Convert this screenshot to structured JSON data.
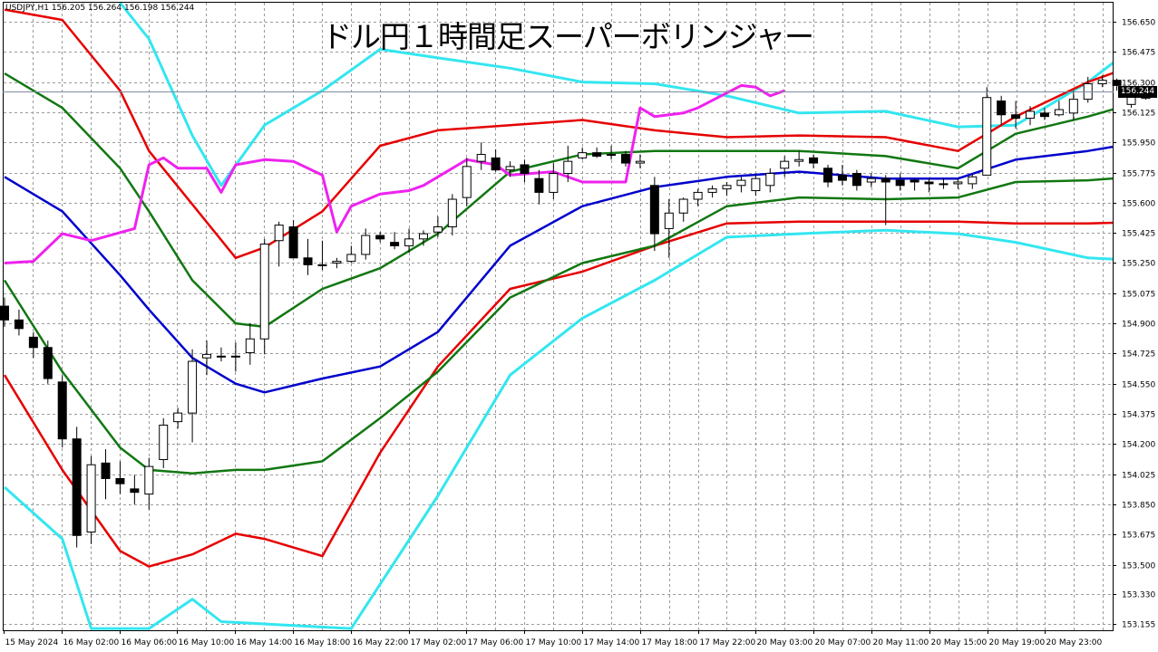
{
  "window": {
    "symbol_info": "USDJPY,H1  156.205 156.264 156.198 156.244",
    "title": "ドル円１時間足スーパーボリンジャー",
    "last_price": "156.244"
  },
  "colors": {
    "band_3sigma": "#33e6f0",
    "band_2sigma": "#e60000",
    "band_1sigma": "#117711",
    "middle_line": "#0000cc",
    "lagging_span": "#ee22ee"
  },
  "chart_data": {
    "type": "candlestick",
    "symbol": "USDJPY",
    "timeframe": "H1",
    "ylim": [
      153.12,
      156.76
    ],
    "price_ticks": [
      "156.650",
      "156.475",
      "156.300",
      "156.125",
      "155.950",
      "155.775",
      "155.600",
      "155.425",
      "155.250",
      "155.075",
      "154.900",
      "154.725",
      "154.550",
      "154.375",
      "154.200",
      "154.025",
      "153.850",
      "153.675",
      "153.500",
      "153.330",
      "153.155"
    ],
    "time_ticks": [
      "15 May 2024",
      "16 May 02:00",
      "16 May 06:00",
      "16 May 10:00",
      "16 May 14:00",
      "16 May 18:00",
      "16 May 22:00",
      "17 May 02:00",
      "17 May 06:00",
      "17 May 10:00",
      "17 May 14:00",
      "17 May 18:00",
      "17 May 22:00",
      "20 May 03:00",
      "20 May 07:00",
      "20 May 11:00",
      "20 May 15:00",
      "20 May 19:00",
      "20 May 23:00"
    ],
    "candles": [
      [
        155.0,
        155.05,
        154.88,
        154.92
      ],
      [
        154.92,
        154.98,
        154.83,
        154.87
      ],
      [
        154.82,
        154.85,
        154.7,
        154.76
      ],
      [
        154.76,
        154.8,
        154.55,
        154.58
      ],
      [
        154.56,
        154.6,
        154.18,
        154.23
      ],
      [
        154.23,
        154.3,
        153.6,
        153.67
      ],
      [
        153.69,
        154.13,
        153.62,
        154.08
      ],
      [
        154.09,
        154.17,
        153.88,
        154.0
      ],
      [
        154.0,
        154.1,
        153.91,
        153.97
      ],
      [
        153.94,
        154.02,
        153.85,
        153.92
      ],
      [
        153.91,
        154.12,
        153.82,
        154.07
      ],
      [
        154.11,
        154.35,
        154.06,
        154.31
      ],
      [
        154.33,
        154.41,
        154.29,
        154.38
      ],
      [
        154.38,
        154.75,
        154.21,
        154.68
      ],
      [
        154.7,
        154.8,
        154.6,
        154.72
      ],
      [
        154.71,
        154.76,
        154.68,
        154.71
      ],
      [
        154.71,
        154.79,
        154.62,
        154.71
      ],
      [
        154.73,
        154.9,
        154.66,
        154.81
      ],
      [
        154.81,
        155.39,
        154.72,
        155.36
      ],
      [
        155.38,
        155.49,
        155.23,
        155.47
      ],
      [
        155.46,
        155.5,
        155.31,
        155.28
      ],
      [
        155.28,
        155.39,
        155.18,
        155.24
      ],
      [
        155.24,
        155.38,
        155.21,
        155.24
      ],
      [
        155.25,
        155.28,
        155.22,
        155.26
      ],
      [
        155.26,
        155.35,
        155.25,
        155.3
      ],
      [
        155.3,
        155.45,
        155.27,
        155.41
      ],
      [
        155.41,
        155.43,
        155.37,
        155.39
      ],
      [
        155.37,
        155.43,
        155.33,
        155.35
      ],
      [
        155.35,
        155.45,
        155.31,
        155.39
      ],
      [
        155.39,
        155.44,
        155.35,
        155.42
      ],
      [
        155.43,
        155.52,
        155.4,
        155.46
      ],
      [
        155.46,
        155.65,
        155.41,
        155.62
      ],
      [
        155.63,
        155.86,
        155.58,
        155.81
      ],
      [
        155.84,
        155.95,
        155.79,
        155.88
      ],
      [
        155.86,
        155.91,
        155.78,
        155.79
      ],
      [
        155.79,
        155.84,
        155.75,
        155.81
      ],
      [
        155.82,
        155.85,
        155.72,
        155.77
      ],
      [
        155.74,
        155.79,
        155.59,
        155.66
      ],
      [
        155.66,
        155.83,
        155.62,
        155.77
      ],
      [
        155.77,
        155.93,
        155.72,
        155.84
      ],
      [
        155.86,
        155.92,
        155.85,
        155.89
      ],
      [
        155.89,
        155.92,
        155.86,
        155.87
      ],
      [
        155.88,
        155.93,
        155.85,
        155.88
      ],
      [
        155.88,
        155.9,
        155.81,
        155.83
      ],
      [
        155.83,
        155.88,
        155.8,
        155.84
      ],
      [
        155.7,
        155.75,
        155.32,
        155.42
      ],
      [
        155.45,
        155.62,
        155.28,
        155.54
      ],
      [
        155.54,
        155.63,
        155.49,
        155.62
      ],
      [
        155.62,
        155.68,
        155.58,
        155.66
      ],
      [
        155.66,
        155.7,
        155.63,
        155.68
      ],
      [
        155.68,
        155.72,
        155.64,
        155.7
      ],
      [
        155.7,
        155.75,
        155.66,
        155.73
      ],
      [
        155.67,
        155.76,
        155.64,
        155.74
      ],
      [
        155.7,
        155.8,
        155.66,
        155.77
      ],
      [
        155.8,
        155.87,
        155.75,
        155.84
      ],
      [
        155.84,
        155.9,
        155.81,
        155.85
      ],
      [
        155.86,
        155.88,
        155.8,
        155.83
      ],
      [
        155.8,
        155.82,
        155.69,
        155.72
      ],
      [
        155.76,
        155.82,
        155.7,
        155.73
      ],
      [
        155.77,
        155.79,
        155.67,
        155.7
      ],
      [
        155.72,
        155.77,
        155.69,
        155.74
      ],
      [
        155.74,
        155.76,
        155.47,
        155.72
      ],
      [
        155.73,
        155.77,
        155.67,
        155.7
      ],
      [
        155.73,
        155.74,
        155.67,
        155.72
      ],
      [
        155.72,
        155.74,
        155.66,
        155.71
      ],
      [
        155.71,
        155.74,
        155.68,
        155.71
      ],
      [
        155.71,
        155.74,
        155.68,
        155.72
      ],
      [
        155.71,
        155.77,
        155.68,
        155.75
      ],
      [
        155.76,
        156.27,
        155.79,
        156.21
      ],
      [
        156.19,
        156.22,
        156.05,
        156.11
      ],
      [
        156.11,
        156.19,
        156.03,
        156.09
      ],
      [
        156.09,
        156.16,
        156.05,
        156.13
      ],
      [
        156.12,
        156.15,
        156.08,
        156.1
      ],
      [
        156.11,
        156.19,
        156.1,
        156.14
      ],
      [
        156.12,
        156.25,
        156.08,
        156.2
      ],
      [
        156.2,
        156.33,
        156.18,
        156.29
      ],
      [
        156.29,
        156.34,
        156.27,
        156.31
      ],
      [
        156.31,
        156.32,
        156.25,
        156.28
      ],
      [
        156.17,
        156.27,
        156.15,
        156.24
      ],
      [
        156.205,
        156.264,
        156.198,
        156.244
      ]
    ],
    "bands": {
      "middle": [
        [
          0,
          155.75
        ],
        [
          4,
          155.55
        ],
        [
          8,
          155.18
        ],
        [
          10,
          154.98
        ],
        [
          13,
          154.7
        ],
        [
          16,
          154.55
        ],
        [
          18,
          154.5
        ],
        [
          22,
          154.58
        ],
        [
          26,
          154.65
        ],
        [
          30,
          154.85
        ],
        [
          35,
          155.35
        ],
        [
          40,
          155.58
        ],
        [
          45,
          155.69
        ],
        [
          50,
          155.75
        ],
        [
          55,
          155.78
        ],
        [
          61,
          155.74
        ],
        [
          66,
          155.74
        ],
        [
          70,
          155.85
        ],
        [
          75,
          155.9
        ],
        [
          80,
          155.97
        ]
      ],
      "p1": [
        [
          0,
          156.35
        ],
        [
          4,
          156.15
        ],
        [
          8,
          155.8
        ],
        [
          10,
          155.55
        ],
        [
          13,
          155.15
        ],
        [
          16,
          154.9
        ],
        [
          18,
          154.88
        ],
        [
          22,
          155.1
        ],
        [
          26,
          155.22
        ],
        [
          30,
          155.42
        ],
        [
          35,
          155.78
        ],
        [
          40,
          155.88
        ],
        [
          45,
          155.9
        ],
        [
          50,
          155.9
        ],
        [
          55,
          155.9
        ],
        [
          61,
          155.87
        ],
        [
          66,
          155.8
        ],
        [
          70,
          156.0
        ],
        [
          75,
          156.1
        ],
        [
          80,
          156.22
        ]
      ],
      "m1": [
        [
          0,
          155.15
        ],
        [
          4,
          154.62
        ],
        [
          8,
          154.18
        ],
        [
          10,
          154.05
        ],
        [
          13,
          154.03
        ],
        [
          16,
          154.05
        ],
        [
          18,
          154.05
        ],
        [
          22,
          154.1
        ],
        [
          26,
          154.35
        ],
        [
          30,
          154.62
        ],
        [
          35,
          155.05
        ],
        [
          40,
          155.25
        ],
        [
          45,
          155.35
        ],
        [
          50,
          155.58
        ],
        [
          55,
          155.63
        ],
        [
          61,
          155.62
        ],
        [
          66,
          155.63
        ],
        [
          70,
          155.72
        ],
        [
          75,
          155.73
        ],
        [
          80,
          155.76
        ]
      ],
      "p2": [
        [
          0,
          156.72
        ],
        [
          4,
          156.66
        ],
        [
          8,
          156.25
        ],
        [
          10,
          155.9
        ],
        [
          13,
          155.59
        ],
        [
          16,
          155.28
        ],
        [
          18,
          155.34
        ],
        [
          22,
          155.55
        ],
        [
          26,
          155.93
        ],
        [
          30,
          156.02
        ],
        [
          35,
          156.05
        ],
        [
          40,
          156.08
        ],
        [
          45,
          156.02
        ],
        [
          50,
          155.98
        ],
        [
          55,
          155.99
        ],
        [
          61,
          155.98
        ],
        [
          66,
          155.9
        ],
        [
          70,
          156.1
        ],
        [
          75,
          156.3
        ],
        [
          80,
          156.45
        ]
      ],
      "m2": [
        [
          0,
          154.6
        ],
        [
          4,
          154.05
        ],
        [
          8,
          153.58
        ],
        [
          10,
          153.49
        ],
        [
          13,
          153.56
        ],
        [
          16,
          153.68
        ],
        [
          18,
          153.65
        ],
        [
          22,
          153.55
        ],
        [
          26,
          154.15
        ],
        [
          30,
          154.65
        ],
        [
          35,
          155.1
        ],
        [
          40,
          155.2
        ],
        [
          45,
          155.35
        ],
        [
          50,
          155.48
        ],
        [
          55,
          155.49
        ],
        [
          61,
          155.49
        ],
        [
          66,
          155.49
        ],
        [
          70,
          155.48
        ],
        [
          75,
          155.48
        ],
        [
          80,
          155.49
        ]
      ],
      "p3": [
        [
          8,
          156.76
        ],
        [
          10,
          156.55
        ],
        [
          13,
          155.99
        ],
        [
          15,
          155.7
        ],
        [
          18,
          156.05
        ],
        [
          22,
          156.25
        ],
        [
          26,
          156.49
        ],
        [
          30,
          156.44
        ],
        [
          35,
          156.38
        ],
        [
          40,
          156.3
        ],
        [
          45,
          156.29
        ],
        [
          50,
          156.22
        ],
        [
          55,
          156.12
        ],
        [
          61,
          156.13
        ],
        [
          66,
          156.04
        ],
        [
          70,
          156.05
        ],
        [
          75,
          156.3
        ],
        [
          80,
          156.62
        ]
      ],
      "m3": [
        [
          0,
          153.95
        ],
        [
          4,
          153.65
        ],
        [
          6,
          153.13
        ],
        [
          10,
          153.13
        ],
        [
          13,
          153.3
        ],
        [
          15,
          153.17
        ],
        [
          24,
          153.13
        ],
        [
          30,
          153.9
        ],
        [
          35,
          154.6
        ],
        [
          40,
          154.93
        ],
        [
          45,
          155.15
        ],
        [
          50,
          155.4
        ],
        [
          55,
          155.42
        ],
        [
          61,
          155.44
        ],
        [
          66,
          155.42
        ],
        [
          70,
          155.37
        ],
        [
          75,
          155.28
        ],
        [
          80,
          155.26
        ]
      ]
    },
    "lagging": [
      [
        0,
        155.25
      ],
      [
        2,
        155.26
      ],
      [
        4,
        155.42
      ],
      [
        6,
        155.38
      ],
      [
        9,
        155.45
      ],
      [
        10,
        155.82
      ],
      [
        11,
        155.86
      ],
      [
        12,
        155.8
      ],
      [
        14,
        155.8
      ],
      [
        15,
        155.66
      ],
      [
        16,
        155.82
      ],
      [
        18,
        155.85
      ],
      [
        20,
        155.84
      ],
      [
        22,
        155.76
      ],
      [
        23,
        155.43
      ],
      [
        24,
        155.58
      ],
      [
        26,
        155.65
      ],
      [
        28,
        155.67
      ],
      [
        29,
        155.7
      ],
      [
        32,
        155.85
      ],
      [
        34,
        155.82
      ],
      [
        35,
        155.76
      ],
      [
        38,
        155.78
      ],
      [
        40,
        155.72
      ],
      [
        42,
        155.72
      ],
      [
        43,
        155.72
      ],
      [
        44,
        156.15
      ],
      [
        45,
        156.1
      ],
      [
        47,
        156.12
      ],
      [
        48,
        156.15
      ],
      [
        51,
        156.28
      ],
      [
        52,
        156.27
      ],
      [
        53,
        156.22
      ],
      [
        54,
        156.25
      ]
    ]
  }
}
